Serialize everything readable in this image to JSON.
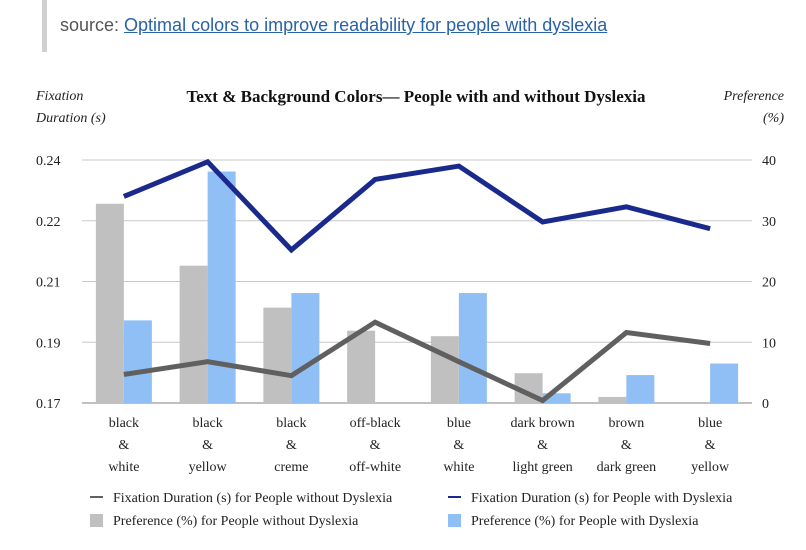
{
  "source": {
    "prefix": "source:",
    "link_text": "Optimal colors to improve readability for people with dyslexia"
  },
  "chart_data": {
    "type": "bar",
    "title": "Text & Background Colors— People with and without Dyslexia",
    "left_axis_label_line1": "Fixation",
    "left_axis_label_line2": "Duration (s)",
    "right_axis_label_line1": "Preference",
    "right_axis_label_line2": "(%)",
    "left_ticks": [
      "0.17",
      "0.19",
      "0.21",
      "0.22",
      "0.24"
    ],
    "right_ticks": [
      "0",
      "10",
      "20",
      "30",
      "40"
    ],
    "categories": [
      [
        "black",
        "&",
        "white"
      ],
      [
        "black",
        "&",
        "yellow"
      ],
      [
        "black",
        "&",
        "creme"
      ],
      [
        "off-black",
        "&",
        "off-white"
      ],
      [
        "blue",
        "&",
        "white"
      ],
      [
        "dark brown",
        "&",
        "light green"
      ],
      [
        "brown",
        "&",
        "dark green"
      ],
      [
        "blue",
        "&",
        "yellow"
      ]
    ],
    "right_axis_range": [
      0,
      40
    ],
    "grid": true,
    "legend_position": "bottom",
    "colors": {
      "pref_without": "#c0c0c0",
      "pref_with": "#90bff5",
      "fix_without": "#606060",
      "fix_with": "#1a2a8c",
      "grid": "#c8c8c8"
    },
    "series": [
      {
        "name": "Fixation Duration (s) for People without Dyslexia",
        "type": "line",
        "axis": "left",
        "values": [
          4.7,
          6.8,
          4.5,
          13.3,
          6.8,
          0.4,
          11.6,
          9.8
        ]
      },
      {
        "name": "Fixation Duration (s) for People with Dyslexia",
        "type": "line",
        "axis": "left",
        "values": [
          34,
          39.7,
          25.2,
          36.8,
          39,
          29.8,
          32.3,
          28.7
        ]
      },
      {
        "name": "Preference (%) for People without Dyslexia",
        "type": "bar",
        "axis": "right",
        "values": [
          32.8,
          22.6,
          15.7,
          11.9,
          11.0,
          4.9,
          1.0,
          0
        ]
      },
      {
        "name": "Preference (%) for People with Dyslexia",
        "type": "bar",
        "axis": "right",
        "values": [
          13.6,
          38.1,
          18.1,
          0,
          18.1,
          1.6,
          4.6,
          6.5
        ]
      }
    ]
  }
}
